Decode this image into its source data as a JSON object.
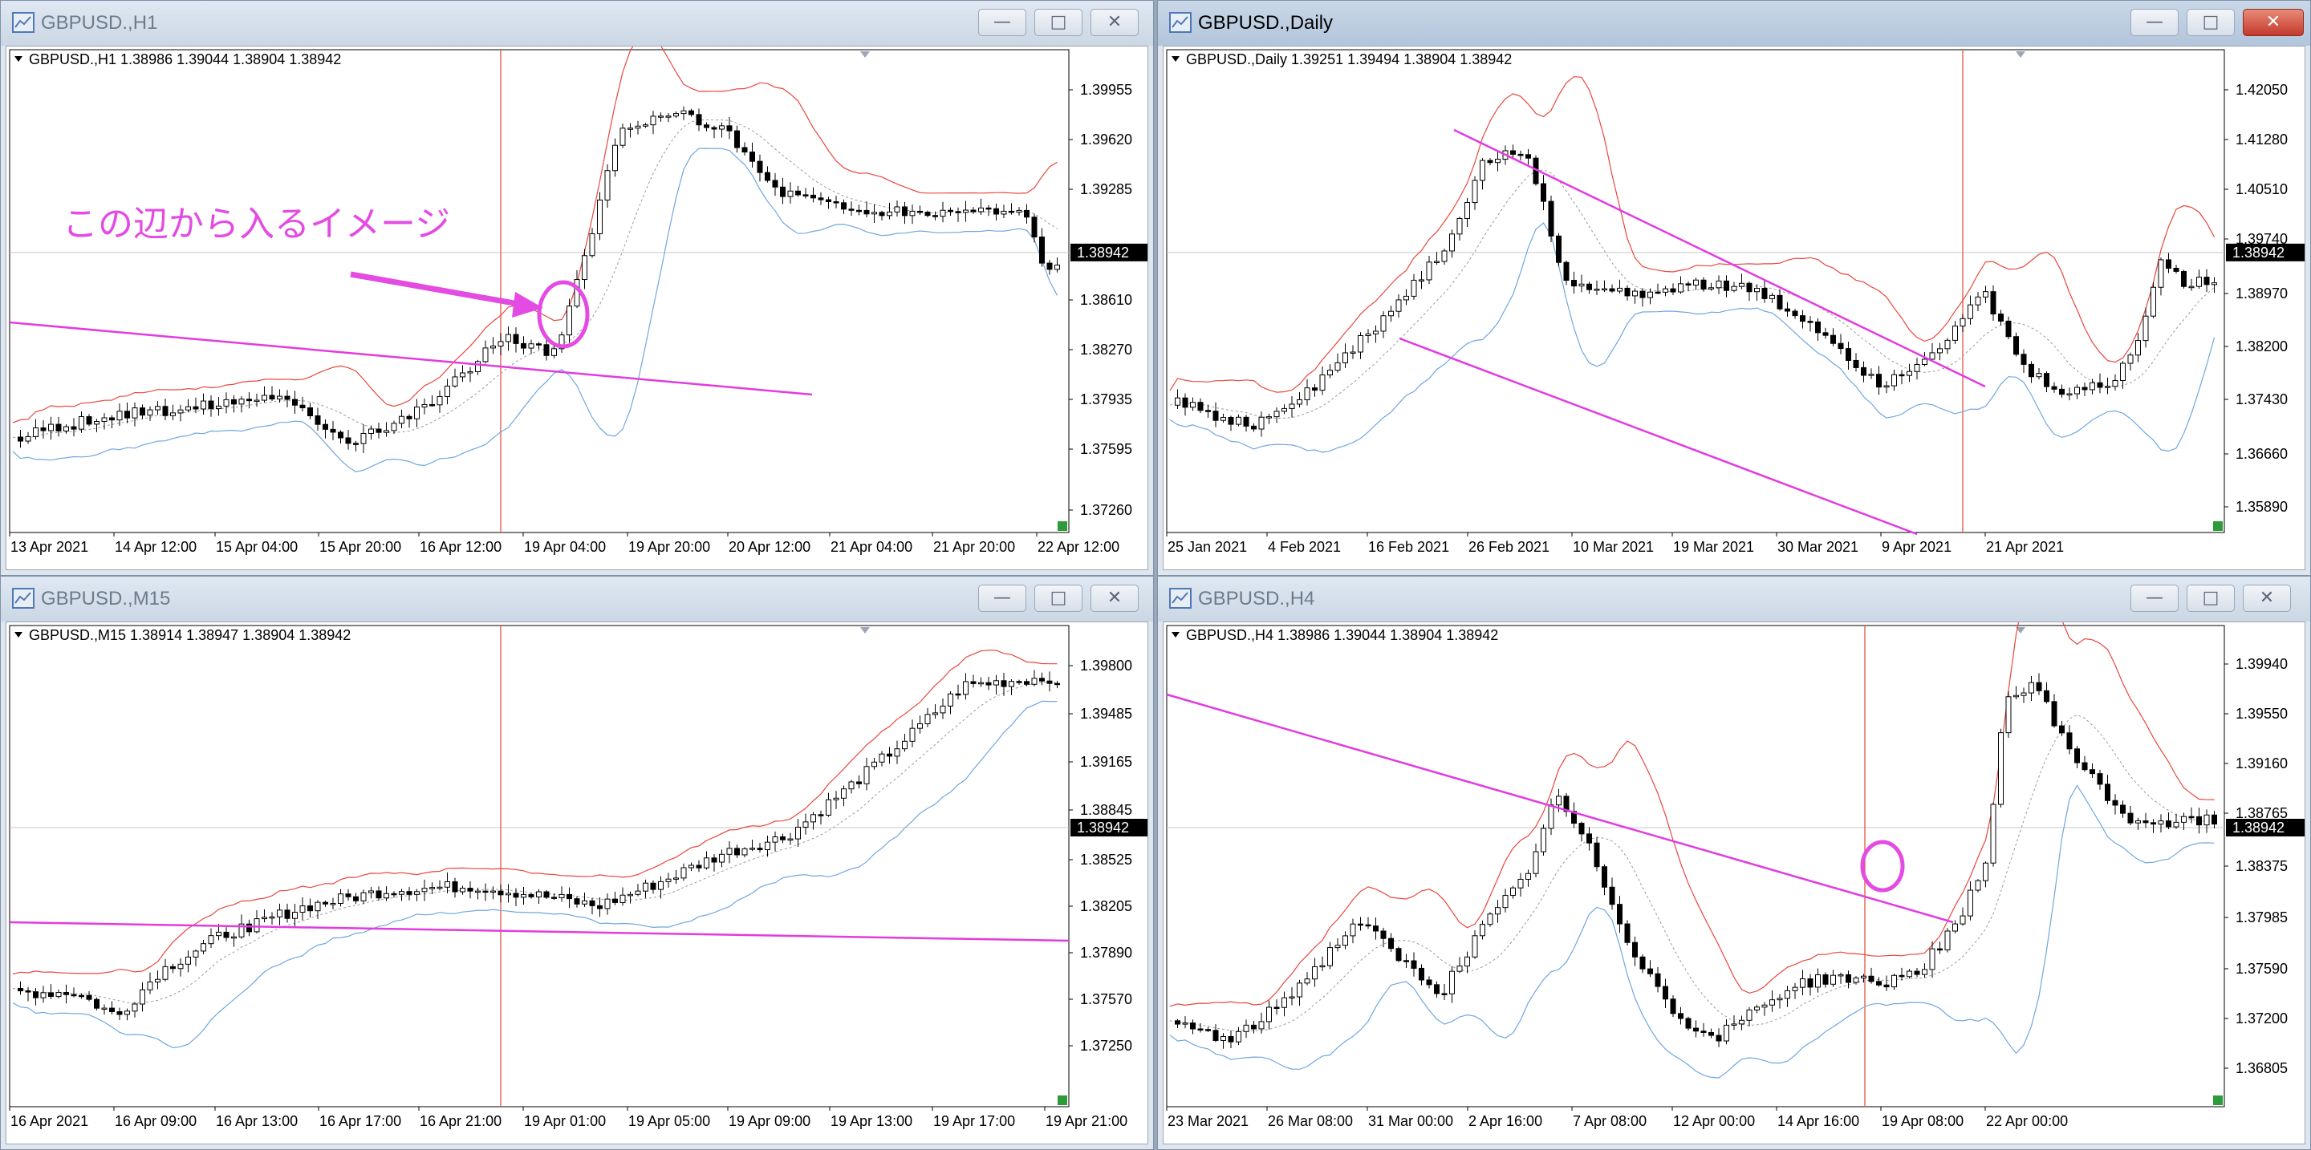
{
  "windows": [
    {
      "key": "h1",
      "title": "GBPUSD.,H1",
      "active": false,
      "ohlc": "GBPUSD.,H1  1.38986 1.39044 1.38904 1.38942",
      "current_price": "1.38942",
      "y_ticks": [
        "1.39955",
        "1.39620",
        "1.39285",
        "1.38610",
        "1.38270",
        "1.37935",
        "1.37595",
        "1.37260"
      ],
      "x_ticks": [
        "13 Apr 2021",
        "14 Apr 12:00",
        "15 Apr 04:00",
        "15 Apr 20:00",
        "16 Apr 12:00",
        "19 Apr 04:00",
        "19 Apr 20:00",
        "20 Apr 12:00",
        "21 Apr 04:00",
        "21 Apr 20:00",
        "22 Apr 12:00"
      ],
      "annotation": "この辺から入るイメージ"
    },
    {
      "key": "daily",
      "title": "GBPUSD.,Daily",
      "active": true,
      "ohlc": "GBPUSD.,Daily  1.39251 1.39494 1.38904 1.38942",
      "current_price": "1.38942",
      "y_ticks": [
        "1.42050",
        "1.41280",
        "1.40510",
        "1.39740",
        "1.38970",
        "1.38200",
        "1.37430",
        "1.36660",
        "1.35890"
      ],
      "x_ticks": [
        "25 Jan 2021",
        "4 Feb 2021",
        "16 Feb 2021",
        "26 Feb 2021",
        "10 Mar 2021",
        "19 Mar 2021",
        "30 Mar 2021",
        "9 Apr 2021",
        "21 Apr 2021"
      ]
    },
    {
      "key": "m15",
      "title": "GBPUSD.,M15",
      "active": false,
      "ohlc": "GBPUSD.,M15  1.38914 1.38947 1.38904 1.38942",
      "current_price": "1.38942",
      "y_ticks": [
        "1.39800",
        "1.39485",
        "1.39165",
        "1.38845",
        "1.38525",
        "1.38205",
        "1.37890",
        "1.37570",
        "1.37250"
      ],
      "x_ticks": [
        "16 Apr 2021",
        "16 Apr 09:00",
        "16 Apr 13:00",
        "16 Apr 17:00",
        "16 Apr 21:00",
        "19 Apr 01:00",
        "19 Apr 05:00",
        "19 Apr 09:00",
        "19 Apr 13:00",
        "19 Apr 17:00",
        "19 Apr 21:00"
      ]
    },
    {
      "key": "h4",
      "title": "GBPUSD.,H4",
      "active": false,
      "ohlc": "GBPUSD.,H4  1.38986 1.39044 1.38904 1.38942",
      "current_price": "1.38942",
      "y_ticks": [
        "1.39940",
        "1.39550",
        "1.39160",
        "1.38765",
        "1.38375",
        "1.37985",
        "1.37590",
        "1.37200",
        "1.36805"
      ],
      "x_ticks": [
        "23 Mar 2021",
        "26 Mar 08:00",
        "31 Mar 00:00",
        "2 Apr 16:00",
        "7 Apr 08:00",
        "12 Apr 00:00",
        "14 Apr 16:00",
        "19 Apr 08:00",
        "22 Apr 00:00"
      ]
    }
  ],
  "icons": {
    "minimize": "minimize-icon",
    "maximize": "maximize-icon",
    "close": "close-icon",
    "chart_window": "chart-window-icon"
  },
  "colors": {
    "bull_body": "#ffffff",
    "bear_body": "#000000",
    "upper_band": "#e8473c",
    "lower_band": "#6fa7e0",
    "middle_band": "#9a9a9a",
    "trendline": "#e23be0",
    "vline": "#e86a5a",
    "annotation": "#e34be3"
  }
}
